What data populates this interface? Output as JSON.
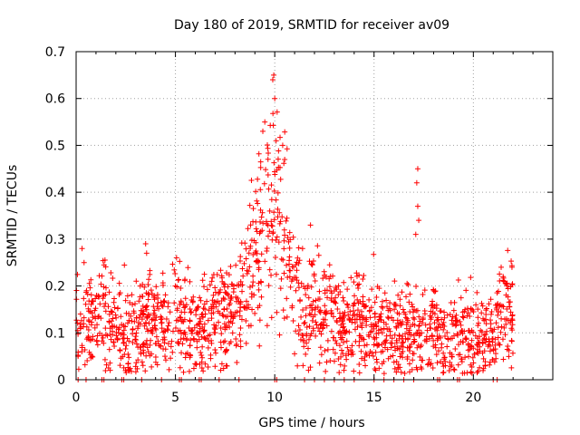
{
  "chart_data": {
    "type": "scatter",
    "title": "Day 180 of 2019, SRMTID for receiver av09",
    "xlabel": "GPS time / hours",
    "ylabel": "SRMTID / TECUs",
    "xlim": [
      0,
      24
    ],
    "ylim": [
      0,
      0.7
    ],
    "xticks": [
      0,
      5,
      10,
      15,
      20
    ],
    "xtick_labels": [
      "0",
      "5",
      "10",
      "15",
      "20"
    ],
    "yticks": [
      0,
      0.1,
      0.2,
      0.3,
      0.4,
      0.5,
      0.6,
      0.7
    ],
    "ytick_labels": [
      "0",
      "0.1",
      "0.2",
      "0.3",
      "0.4",
      "0.5",
      "0.6",
      "0.7"
    ],
    "grid": true,
    "marker": "+",
    "color": "#ff0000",
    "x_range_of_data": [
      0,
      22
    ],
    "baseline_profile": [
      {
        "x": 0.0,
        "y": 0.11
      },
      {
        "x": 0.5,
        "y": 0.12
      },
      {
        "x": 1.0,
        "y": 0.12
      },
      {
        "x": 1.5,
        "y": 0.15
      },
      {
        "x": 2.0,
        "y": 0.13
      },
      {
        "x": 2.5,
        "y": 0.09
      },
      {
        "x": 3.0,
        "y": 0.1
      },
      {
        "x": 3.5,
        "y": 0.13
      },
      {
        "x": 4.0,
        "y": 0.12
      },
      {
        "x": 4.5,
        "y": 0.12
      },
      {
        "x": 5.0,
        "y": 0.14
      },
      {
        "x": 5.5,
        "y": 0.11
      },
      {
        "x": 6.0,
        "y": 0.1
      },
      {
        "x": 6.5,
        "y": 0.12
      },
      {
        "x": 7.0,
        "y": 0.14
      },
      {
        "x": 7.5,
        "y": 0.14
      },
      {
        "x": 8.0,
        "y": 0.14
      },
      {
        "x": 8.5,
        "y": 0.19
      },
      {
        "x": 9.0,
        "y": 0.28
      },
      {
        "x": 9.5,
        "y": 0.36
      },
      {
        "x": 9.8,
        "y": 0.4
      },
      {
        "x": 10.2,
        "y": 0.36
      },
      {
        "x": 10.7,
        "y": 0.27
      },
      {
        "x": 11.0,
        "y": 0.16
      },
      {
        "x": 11.5,
        "y": 0.14
      },
      {
        "x": 12.0,
        "y": 0.15
      },
      {
        "x": 12.5,
        "y": 0.14
      },
      {
        "x": 13.0,
        "y": 0.13
      },
      {
        "x": 13.5,
        "y": 0.12
      },
      {
        "x": 14.0,
        "y": 0.12
      },
      {
        "x": 14.5,
        "y": 0.11
      },
      {
        "x": 15.0,
        "y": 0.11
      },
      {
        "x": 15.5,
        "y": 0.1
      },
      {
        "x": 16.0,
        "y": 0.1
      },
      {
        "x": 16.5,
        "y": 0.1
      },
      {
        "x": 17.0,
        "y": 0.11
      },
      {
        "x": 17.5,
        "y": 0.1
      },
      {
        "x": 18.0,
        "y": 0.1
      },
      {
        "x": 18.5,
        "y": 0.09
      },
      {
        "x": 19.0,
        "y": 0.1
      },
      {
        "x": 19.5,
        "y": 0.09
      },
      {
        "x": 20.0,
        "y": 0.1
      },
      {
        "x": 20.5,
        "y": 0.09
      },
      {
        "x": 21.0,
        "y": 0.09
      },
      {
        "x": 21.5,
        "y": 0.14
      },
      {
        "x": 22.0,
        "y": 0.14
      }
    ],
    "notable_points": [
      {
        "x": 0.3,
        "y": 0.28
      },
      {
        "x": 0.4,
        "y": 0.25
      },
      {
        "x": 3.5,
        "y": 0.29
      },
      {
        "x": 3.55,
        "y": 0.27
      },
      {
        "x": 9.4,
        "y": 0.53
      },
      {
        "x": 9.5,
        "y": 0.55
      },
      {
        "x": 9.9,
        "y": 0.64
      },
      {
        "x": 9.95,
        "y": 0.65
      },
      {
        "x": 10.0,
        "y": 0.6
      },
      {
        "x": 10.4,
        "y": 0.5
      },
      {
        "x": 10.5,
        "y": 0.47
      },
      {
        "x": 11.8,
        "y": 0.33
      },
      {
        "x": 11.7,
        "y": 0.02
      },
      {
        "x": 17.2,
        "y": 0.45
      },
      {
        "x": 17.15,
        "y": 0.42
      },
      {
        "x": 17.2,
        "y": 0.37
      },
      {
        "x": 17.1,
        "y": 0.31
      },
      {
        "x": 17.25,
        "y": 0.34
      },
      {
        "x": 21.4,
        "y": 0.24
      },
      {
        "x": 21.5,
        "y": 0.22
      }
    ],
    "axis_markers_x": [
      0.1,
      0.5,
      1.3,
      1.4,
      2.3,
      2.4,
      3.3,
      4.3,
      5.2,
      5.3,
      6.2,
      6.3,
      7.2,
      8.2,
      10.0,
      10.1,
      11.5,
      12.0,
      12.5,
      13.0,
      13.5,
      14.0,
      15.0,
      15.5,
      16.0,
      16.5,
      17.0,
      18.2,
      18.3,
      19.2,
      19.3,
      21.0,
      21.2
    ]
  }
}
